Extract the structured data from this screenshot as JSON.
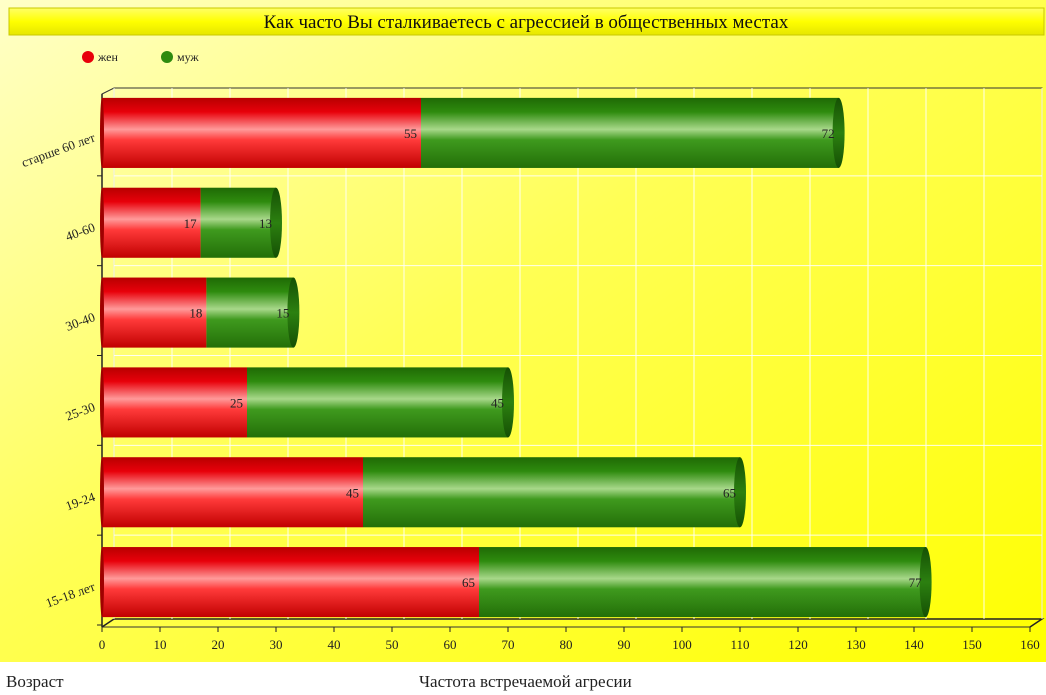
{
  "chart_data": {
    "type": "bar",
    "orientation": "horizontal",
    "stacked": true,
    "title": "Как часто Вы сталкиваетесь с агрессией в общественных местах",
    "categories": [
      "старше 60 лет",
      "40-60",
      "30-40",
      "25-30",
      "19-24",
      "15-18 лет"
    ],
    "series": [
      {
        "name": "жен",
        "color": "#e8000a",
        "values": [
          55,
          17,
          18,
          25,
          45,
          65
        ]
      },
      {
        "name": "муж",
        "color": "#2e8b0e",
        "values": [
          72,
          13,
          15,
          45,
          65,
          77
        ]
      }
    ],
    "xlim": [
      0,
      160
    ],
    "x_ticks": [
      0,
      10,
      20,
      30,
      40,
      50,
      60,
      70,
      80,
      90,
      100,
      110,
      120,
      130,
      140,
      150,
      160
    ],
    "grid": true,
    "legend_position": "top-left",
    "data_labels": true,
    "background_color": "#ffff33"
  },
  "footer": {
    "left_label": "Возраст",
    "center_label": "Частота встречаемой агресии"
  }
}
